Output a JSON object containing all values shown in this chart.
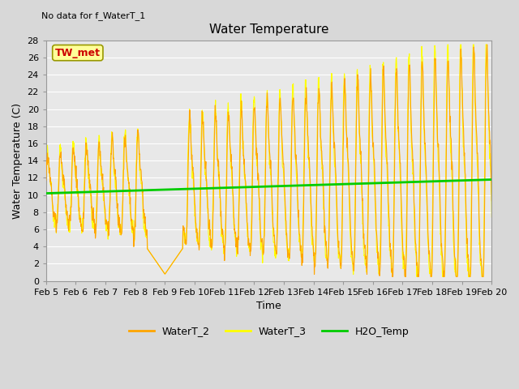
{
  "title": "Water Temperature",
  "subtitle": "No data for f_WaterT_1",
  "xlabel": "Time",
  "ylabel": "Water Temperature (C)",
  "ylim": [
    0,
    28
  ],
  "yticks": [
    0,
    2,
    4,
    6,
    8,
    10,
    12,
    14,
    16,
    18,
    20,
    22,
    24,
    26,
    28
  ],
  "xtick_labels": [
    "Feb 5",
    "Feb 6",
    "Feb 7",
    "Feb 8",
    "Feb 9",
    "Feb 10",
    "Feb 11",
    "Feb 12",
    "Feb 13",
    "Feb 14",
    "Feb 15",
    "Feb 16",
    "Feb 17",
    "Feb 18",
    "Feb 19",
    "Feb 20"
  ],
  "legend_entries": [
    "WaterT_2",
    "WaterT_3",
    "H2O_Temp"
  ],
  "wt2_color": "#FFA500",
  "wt3_color": "#FFFF00",
  "h2o_color": "#00CC00",
  "annotation_text": "TW_met",
  "annotation_box_color": "#FFFF99",
  "annotation_text_color": "#CC0000",
  "annotation_edge_color": "#999900",
  "background_color": "#D8D8D8",
  "plot_bg_color": "#E8E8E8",
  "grid_color": "#FFFFFF",
  "title_fontsize": 11,
  "axis_fontsize": 9,
  "tick_fontsize": 8
}
